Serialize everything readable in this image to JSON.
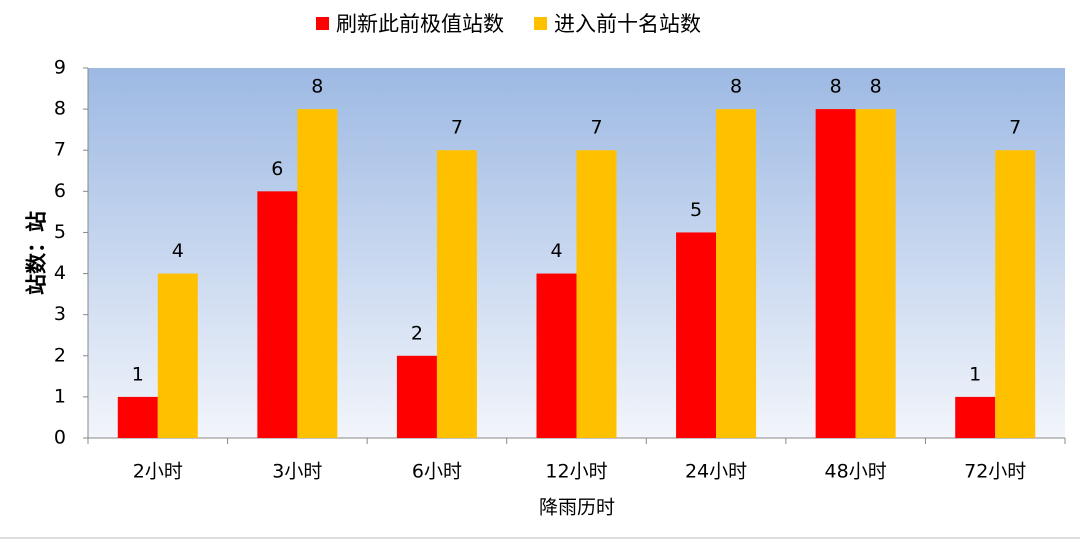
{
  "chart_data": {
    "type": "bar",
    "x_label": "降雨历时",
    "y_label": "站数：站",
    "categories": [
      "2小时",
      "3小时",
      "6小时",
      "12小时",
      "24小时",
      "48小时",
      "72小时"
    ],
    "series": [
      {
        "name": "刷新此前极值站数",
        "color": "#ff0000",
        "values": [
          1,
          6,
          2,
          4,
          5,
          8,
          1
        ]
      },
      {
        "name": "进入前十名站数",
        "color": "#ffc000",
        "values": [
          4,
          8,
          7,
          7,
          8,
          8,
          7
        ]
      }
    ],
    "ylim": [
      0,
      9
    ],
    "yticks": [
      0,
      1,
      2,
      3,
      4,
      5,
      6,
      7,
      8,
      9
    ],
    "legend": "top"
  }
}
